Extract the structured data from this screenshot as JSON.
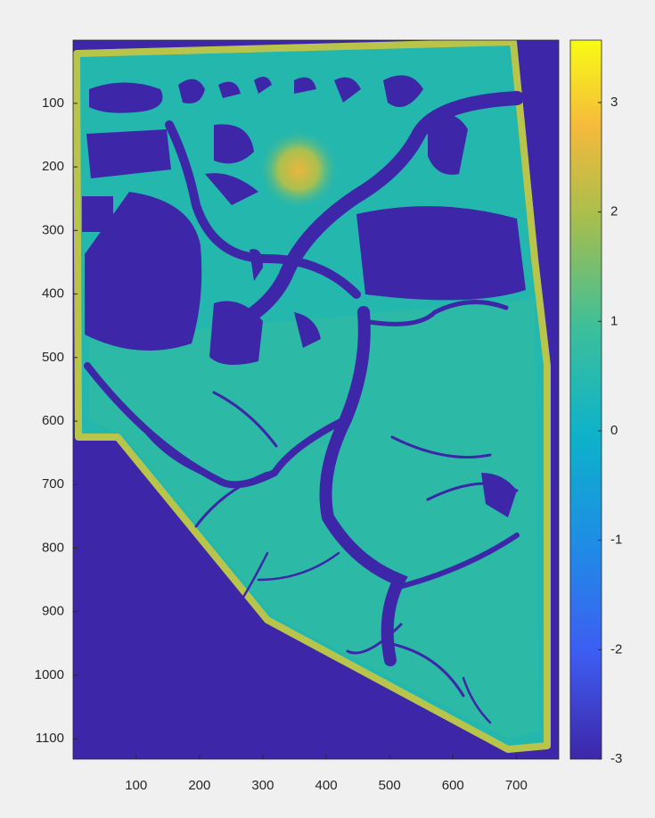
{
  "chart_data": {
    "type": "image",
    "xlim": [
      0.5,
      767
    ],
    "xticks": [
      100,
      200,
      300,
      400,
      500,
      600,
      700
    ],
    "ylim": [
      0.5,
      1132
    ],
    "yticks": [
      100,
      200,
      300,
      400,
      500,
      600,
      700,
      800,
      900,
      1000,
      1100
    ],
    "y_reversed": true,
    "clim": [
      -3,
      3.57
    ],
    "cticks": [
      -3,
      -2,
      -1,
      0,
      1,
      2,
      3
    ],
    "colormap": "parula"
  }
}
